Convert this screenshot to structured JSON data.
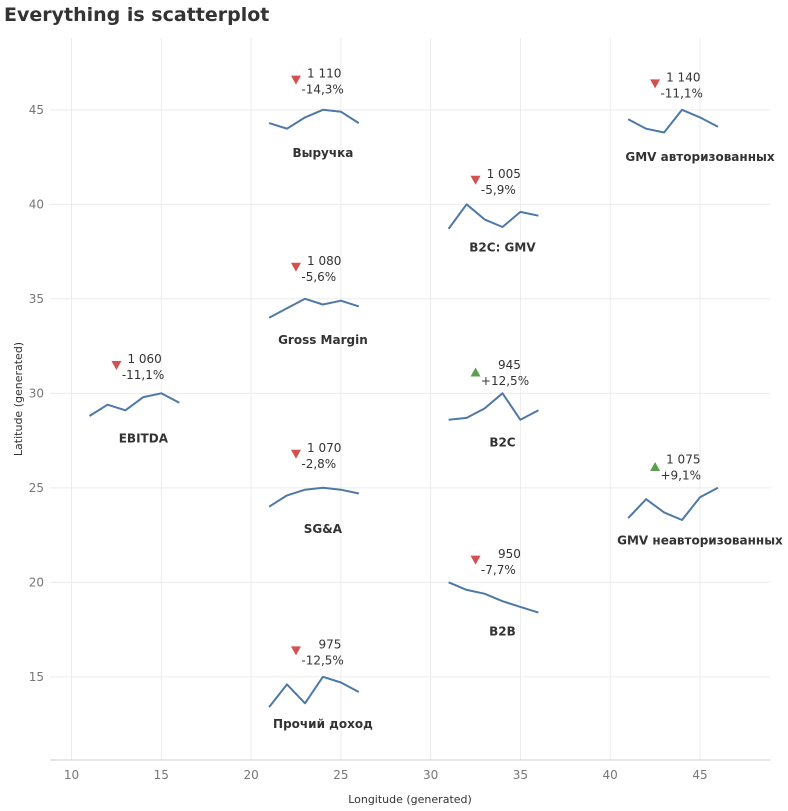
{
  "title": "Everything is scatterplot",
  "chart_data": {
    "type": "scatter",
    "title": "Everything is scatterplot",
    "xlabel": "Longitude (generated)",
    "ylabel": "Latitude (generated)",
    "xlim": [
      8.8,
      48.9
    ],
    "ylim": [
      10.6,
      48.8
    ],
    "xticks": [
      10,
      15,
      20,
      25,
      30,
      35,
      40,
      45
    ],
    "yticks": [
      15,
      20,
      25,
      30,
      35,
      40,
      45
    ],
    "grid": true,
    "colors": {
      "line": "#4e79a7",
      "down": "#d45151",
      "up": "#59a14f",
      "text": "#333333",
      "grid": "#ececec"
    },
    "tiles": [
      {
        "name": "Выручка",
        "value": "1 110",
        "change": "-14,3%",
        "direction": "down",
        "marker": [
          22.5,
          46.6
        ],
        "label": [
          22.8,
          46.7
        ],
        "name_pos": [
          24,
          42.5
        ],
        "spark_x": [
          21,
          22,
          23,
          24,
          25,
          26
        ],
        "spark_y": [
          44.3,
          44.0,
          44.6,
          45.0,
          44.9,
          44.3
        ]
      },
      {
        "name": "GMV авторизованных",
        "value": "1 140",
        "change": "-11,1%",
        "direction": "down",
        "marker": [
          42.5,
          46.4
        ],
        "label": [
          42.8,
          46.5
        ],
        "name_pos": [
          45,
          42.3
        ],
        "spark_x": [
          41,
          42,
          43,
          44,
          45,
          46
        ],
        "spark_y": [
          44.5,
          44.0,
          43.8,
          45.0,
          44.6,
          44.1
        ]
      },
      {
        "name": "B2C: GMV",
        "value": "1 005",
        "change": "-5,9%",
        "direction": "down",
        "marker": [
          32.5,
          41.3
        ],
        "label": [
          32.8,
          41.4
        ],
        "name_pos": [
          34,
          37.5
        ],
        "spark_x": [
          31,
          32,
          33,
          34,
          35,
          36
        ],
        "spark_y": [
          38.7,
          40.0,
          39.2,
          38.8,
          39.6,
          39.4
        ]
      },
      {
        "name": "Gross Margin",
        "value": "1 080",
        "change": "-5,6%",
        "direction": "down",
        "marker": [
          22.5,
          36.7
        ],
        "label": [
          22.8,
          36.8
        ],
        "name_pos": [
          24,
          32.6
        ],
        "spark_x": [
          21,
          22,
          23,
          24,
          25,
          26
        ],
        "spark_y": [
          34.0,
          34.5,
          35.0,
          34.7,
          34.9,
          34.6
        ]
      },
      {
        "name": "EBITDA",
        "value": "1 060",
        "change": "-11,1%",
        "direction": "down",
        "marker": [
          12.5,
          31.5
        ],
        "label": [
          12.8,
          31.6
        ],
        "name_pos": [
          14,
          27.4
        ],
        "spark_x": [
          11,
          12,
          13,
          14,
          15,
          16
        ],
        "spark_y": [
          28.8,
          29.4,
          29.1,
          29.8,
          30.0,
          29.5
        ]
      },
      {
        "name": "B2C",
        "value": "945",
        "change": "+12,5%",
        "direction": "up",
        "marker": [
          32.5,
          31.1
        ],
        "label": [
          32.8,
          31.3
        ],
        "name_pos": [
          34,
          27.2
        ],
        "spark_x": [
          31,
          32,
          33,
          34,
          35,
          36
        ],
        "spark_y": [
          28.6,
          28.7,
          29.2,
          30.0,
          28.6,
          29.1
        ]
      },
      {
        "name": "SG&A",
        "value": "1 070",
        "change": "-2,8%",
        "direction": "down",
        "marker": [
          22.5,
          26.8
        ],
        "label": [
          22.8,
          26.9
        ],
        "name_pos": [
          24,
          22.6
        ],
        "spark_x": [
          21,
          22,
          23,
          24,
          25,
          26
        ],
        "spark_y": [
          24.0,
          24.6,
          24.9,
          25.0,
          24.9,
          24.7
        ]
      },
      {
        "name": "GMV неавторизованных",
        "value": "1 075",
        "change": "+9,1%",
        "direction": "up",
        "marker": [
          42.5,
          26.1
        ],
        "label": [
          42.8,
          26.3
        ],
        "name_pos": [
          45,
          22.0
        ],
        "spark_x": [
          41,
          42,
          43,
          44,
          45,
          46
        ],
        "spark_y": [
          23.4,
          24.4,
          23.7,
          23.3,
          24.5,
          25.0
        ]
      },
      {
        "name": "B2B",
        "value": "950",
        "change": "-7,7%",
        "direction": "down",
        "marker": [
          32.5,
          21.2
        ],
        "label": [
          32.8,
          21.3
        ],
        "name_pos": [
          34,
          17.2
        ],
        "spark_x": [
          31,
          32,
          33,
          34,
          35,
          36
        ],
        "spark_y": [
          20.0,
          19.6,
          19.4,
          19.0,
          18.7,
          18.4
        ]
      },
      {
        "name": "Прочий доход",
        "value": "975",
        "change": "-12,5%",
        "direction": "down",
        "marker": [
          22.5,
          16.4
        ],
        "label": [
          22.8,
          16.5
        ],
        "name_pos": [
          24,
          12.3
        ],
        "spark_x": [
          21,
          22,
          23,
          24,
          25,
          26
        ],
        "spark_y": [
          13.4,
          14.6,
          13.6,
          15.0,
          14.7,
          14.2
        ]
      }
    ]
  }
}
